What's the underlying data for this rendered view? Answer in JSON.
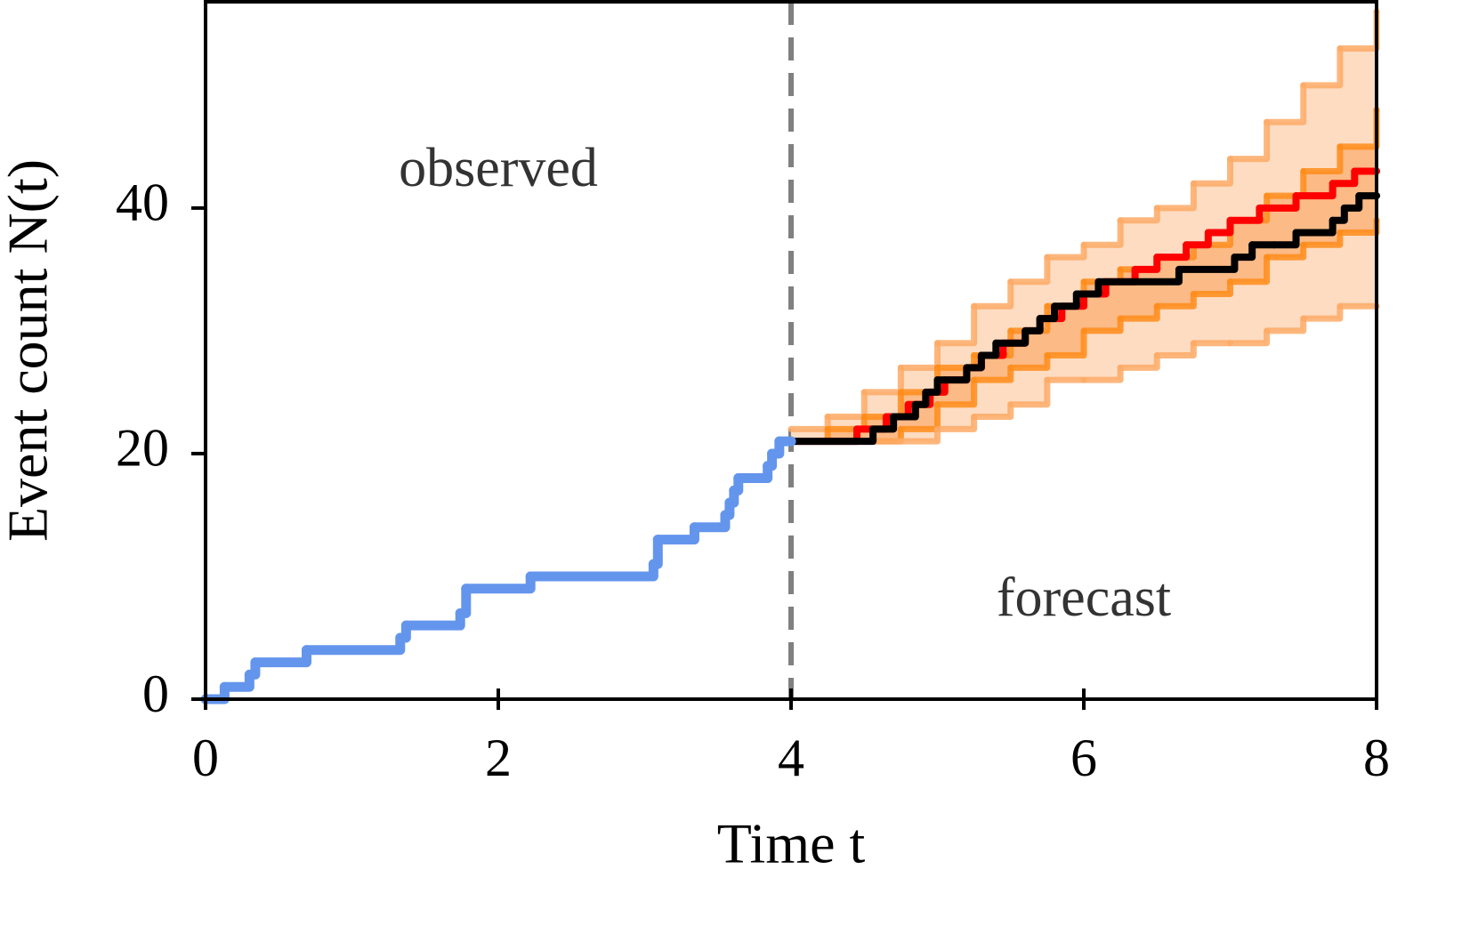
{
  "chart_data": {
    "type": "step",
    "xlabel": "Time t",
    "ylabel": "Event count N(t)",
    "annotations": [
      "observed",
      "forecast"
    ],
    "xlim": [
      0,
      8
    ],
    "ylim": [
      0,
      56.8
    ],
    "xticks": [
      0,
      2,
      4,
      6,
      8
    ],
    "yticks": [
      0,
      20,
      40
    ],
    "vline": 4,
    "vline_color": "#808080",
    "bands": [
      {
        "color": "#fddcc2"
      },
      {
        "color": "#fbba86"
      }
    ],
    "series": [
      {
        "color": "#fdaa66",
        "x": [
          4,
          4.25,
          4.5,
          4.75,
          5,
          5.25,
          5.5,
          5.75,
          6,
          6.25,
          6.5,
          6.75,
          7,
          7.25,
          7.5,
          7.75,
          8
        ],
        "values": [
          22,
          23,
          25,
          27,
          29,
          32,
          34,
          36,
          37,
          39,
          40,
          42,
          44,
          47,
          50,
          53,
          56
        ]
      },
      {
        "color": "#ff8c1a",
        "x": [
          4,
          4.25,
          4.5,
          4.75,
          5,
          5.25,
          5.5,
          5.75,
          6,
          6.25,
          6.5,
          6.75,
          7,
          7.25,
          7.5,
          7.75,
          8
        ],
        "values": [
          21,
          22,
          23,
          25,
          27,
          28,
          30,
          32,
          34,
          35,
          36,
          37,
          39,
          41,
          43,
          45,
          48
        ]
      },
      {
        "color": "#ff8c1a",
        "x": [
          4,
          4.25,
          4.5,
          4.75,
          5,
          5.25,
          5.5,
          5.75,
          6,
          6.25,
          6.5,
          6.75,
          7,
          7.25,
          7.5,
          7.75,
          8
        ],
        "values": [
          21,
          21,
          21,
          22,
          24,
          26,
          27,
          28,
          30,
          31,
          32,
          33,
          34,
          36,
          37,
          38,
          39
        ]
      },
      {
        "color": "#fdaa66",
        "x": [
          4,
          4.25,
          4.5,
          4.75,
          5,
          5.25,
          5.5,
          5.75,
          6,
          6.25,
          6.5,
          6.75,
          7,
          7.25,
          7.5,
          7.75,
          8
        ],
        "values": [
          21,
          21,
          21,
          21,
          22,
          23,
          24,
          26,
          26,
          27,
          28,
          29,
          29,
          30,
          31,
          32,
          32
        ]
      },
      {
        "color": "#ff0000",
        "x": [
          4,
          4.45,
          4.65,
          4.8,
          4.95,
          5.05,
          5.2,
          5.3,
          5.45,
          5.6,
          5.7,
          5.85,
          6,
          6.15,
          6.35,
          6.5,
          6.7,
          6.85,
          7,
          7.2,
          7.45,
          7.7,
          7.85,
          8
        ],
        "values": [
          21,
          22,
          23,
          24,
          25,
          26,
          27,
          28,
          29,
          30,
          31,
          32,
          33,
          34,
          35,
          36,
          37,
          38,
          39,
          40,
          41,
          42,
          43,
          43
        ]
      },
      {
        "color": "#000000",
        "x": [
          4,
          4.56,
          4.7,
          4.85,
          4.92,
          5,
          5.2,
          5.3,
          5.4,
          5.6,
          5.7,
          5.8,
          5.95,
          6.1,
          6.65,
          7.03,
          7.15,
          7.3,
          7.45,
          7.7,
          7.78,
          7.88,
          8
        ],
        "values": [
          21,
          22,
          23,
          24,
          25,
          26,
          27,
          28,
          29,
          30,
          31,
          32,
          33,
          34,
          35,
          36,
          37,
          37,
          38,
          39,
          40,
          41,
          41
        ]
      },
      {
        "color": "#6495ed",
        "x": [
          0,
          0.13,
          0.3,
          0.34,
          0.69,
          1.33,
          1.37,
          1.74,
          1.78,
          2.22,
          3.06,
          3.09,
          3.34,
          3.55,
          3.58,
          3.61,
          3.64,
          3.84,
          3.87,
          3.92,
          4
        ],
        "values": [
          0,
          1,
          2,
          3,
          4,
          5,
          6,
          7,
          9,
          10,
          11,
          13,
          14,
          15,
          16,
          17,
          18,
          19,
          20,
          21,
          21
        ]
      }
    ]
  }
}
